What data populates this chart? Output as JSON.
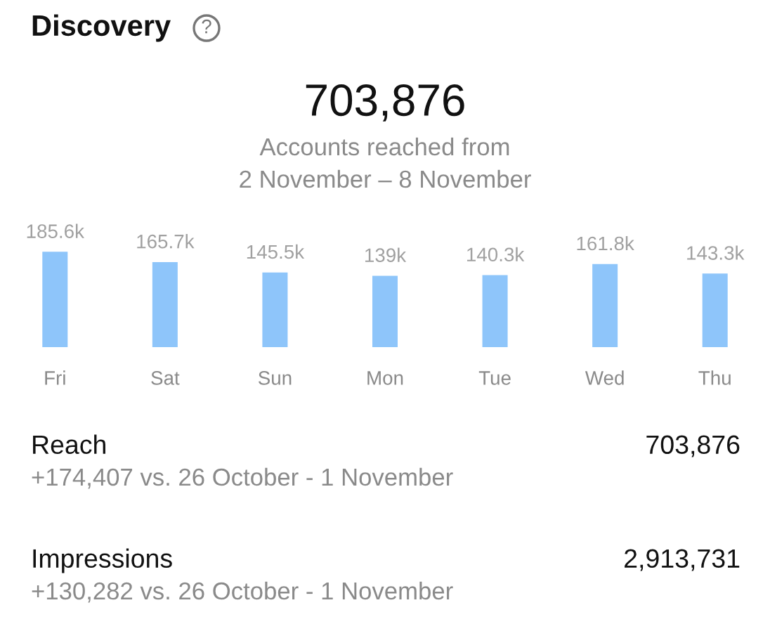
{
  "chart_data": {
    "type": "bar",
    "title": "Discovery",
    "annotations": [
      "?",
      "703,876",
      "Accounts reached from",
      "2 November – 8 November",
      "Reach",
      "703,876",
      "+174,407 vs. 26 October - 1 November",
      "Impressions",
      "2,913,731",
      "+130,282 vs. 26 October - 1 November"
    ],
    "categories": [
      "Fri",
      "Sat",
      "Sun",
      "Mon",
      "Tue",
      "Wed",
      "Thu"
    ],
    "values": [
      185.6,
      165.7,
      145.5,
      139,
      140.3,
      161.8,
      143.3
    ],
    "value_labels": [
      "185.6k",
      "165.7k",
      "145.5k",
      "139k",
      "140.3k",
      "161.8k",
      "143.3k"
    ],
    "color": "#8ec5fa"
  }
}
